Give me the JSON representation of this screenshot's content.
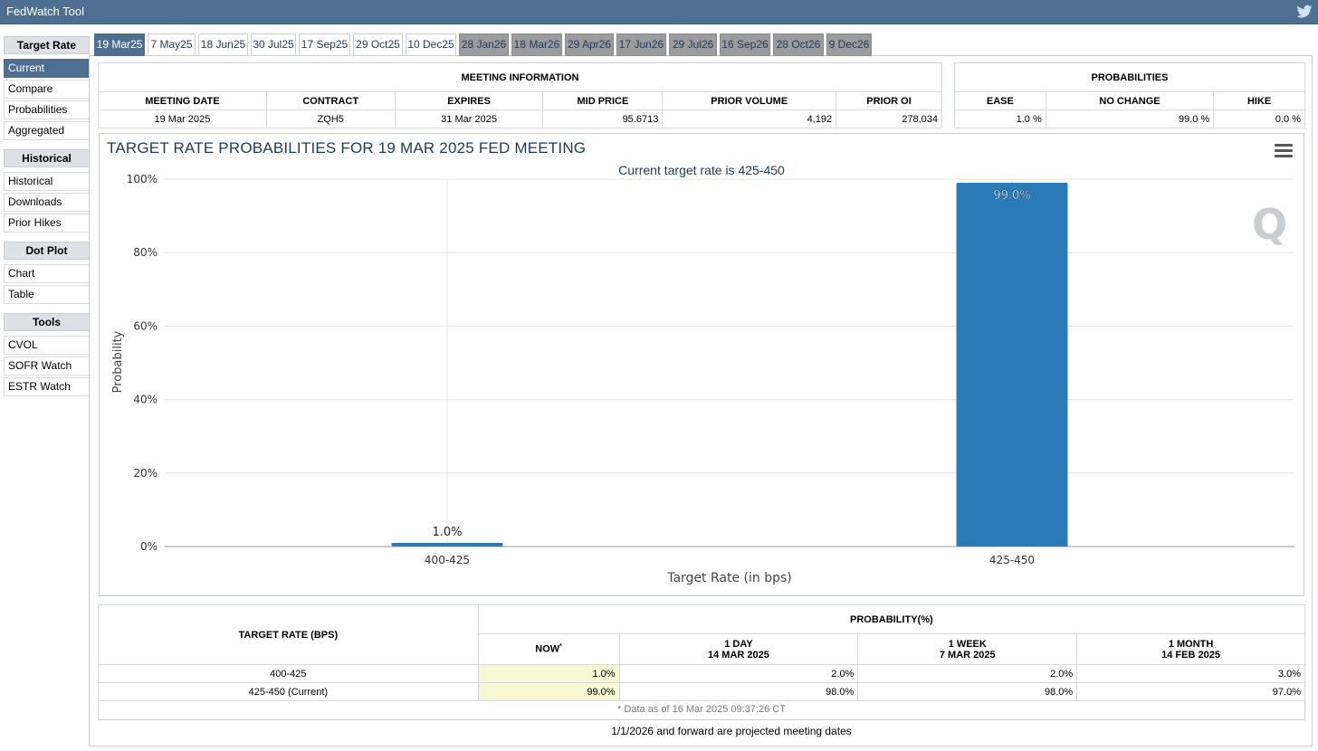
{
  "app": {
    "title": "FedWatch Tool",
    "twitter_icon": "twitter-icon"
  },
  "sidebar": {
    "sections": [
      {
        "heading": "Target Rate",
        "items": [
          "Current",
          "Compare",
          "Probabilities",
          "Aggregated"
        ]
      },
      {
        "heading": "Historical",
        "items": [
          "Historical",
          "Downloads",
          "Prior Hikes"
        ]
      },
      {
        "heading": "Dot Plot",
        "items": [
          "Chart",
          "Table"
        ]
      },
      {
        "heading": "Tools",
        "items": [
          "CVOL",
          "SOFR Watch",
          "ESTR Watch"
        ]
      }
    ],
    "active_item": "Current"
  },
  "tabs": {
    "labels": [
      "19 Mar25",
      "7 May25",
      "18 Jun25",
      "30 Jul25",
      "17 Sep25",
      "29 Oct25",
      "10 Dec25",
      "28 Jan26",
      "18 Mar26",
      "29 Apr26",
      "17 Jun26",
      "29 Jul26",
      "16 Sep26",
      "28 Oct26",
      "9 Dec26"
    ],
    "selected": "19 Mar25"
  },
  "meeting_info": {
    "heading": "MEETING INFORMATION",
    "columns": [
      "MEETING DATE",
      "CONTRACT",
      "EXPIRES",
      "MID PRICE",
      "PRIOR VOLUME",
      "PRIOR OI"
    ],
    "row": [
      "19 Mar 2025",
      "ZQH5",
      "31 Mar 2025",
      "95.6713",
      "4,192",
      "278,034"
    ]
  },
  "probabilities": {
    "heading": "PROBABILITIES",
    "columns": [
      "EASE",
      "NO CHANGE",
      "HIKE"
    ],
    "row": [
      "1.0 %",
      "99.0 %",
      "0.0 %"
    ]
  },
  "chart_data": {
    "type": "bar",
    "title": "TARGET RATE PROBABILITIES FOR 19 MAR 2025 FED MEETING",
    "subtitle": "Current target rate is 425-450",
    "categories": [
      "400-425",
      "425-450"
    ],
    "values": [
      1.0,
      99.0
    ],
    "data_labels": [
      "1.0%",
      "99.0%"
    ],
    "xlabel": "Target Rate (in bps)",
    "ylabel": "Probability",
    "ylim": [
      0,
      100
    ],
    "yticks": [
      "0%",
      "20%",
      "40%",
      "60%",
      "80%",
      "100%"
    ],
    "bar_color": "#2b7bb9",
    "grid": true,
    "watermark": "Q"
  },
  "prob_table": {
    "rate_header": "TARGET RATE (BPS)",
    "prob_header": "PROBABILITY(%)",
    "columns": [
      {
        "label": "NOW",
        "sup": "*",
        "date": ""
      },
      {
        "label": "1 DAY",
        "date": "14 MAR 2025"
      },
      {
        "label": "1 WEEK",
        "date": "7 MAR 2025"
      },
      {
        "label": "1 MONTH",
        "date": "14 FEB 2025"
      }
    ],
    "rows": [
      {
        "rate": "400-425",
        "values": [
          "1.0%",
          "2.0%",
          "2.0%",
          "3.0%"
        ]
      },
      {
        "rate": "425-450 (Current)",
        "values": [
          "99.0%",
          "98.0%",
          "98.0%",
          "97.0%"
        ]
      }
    ],
    "footnote": "* Data as of 16 Mar 2025 09:37:26 CT"
  },
  "projected_note": "1/1/2026 and forward are projected meeting dates"
}
